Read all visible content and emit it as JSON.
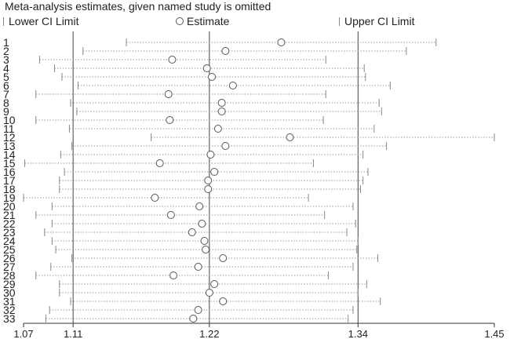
{
  "title": "Meta-analysis estimates, given named study is omitted",
  "legend": {
    "lower": "Lower CI Limit",
    "estimate": "Estimate",
    "upper": "Upper CI Limit"
  },
  "colors": {
    "ci_line": "#999999",
    "ci_cap": "#888888",
    "marker": "#555555",
    "reference_line": "#444444",
    "axis": "#333333",
    "text": "#222222"
  },
  "chart_data": {
    "type": "forest",
    "title": "Meta-analysis estimates, given named study is omitted",
    "xlim": [
      1.07,
      1.45
    ],
    "xticks": [
      1.07,
      1.11,
      1.22,
      1.34,
      1.45
    ],
    "xtick_labels": [
      "1.07",
      "1.11",
      "1.22",
      "1.34",
      "1.45"
    ],
    "reference_lines": [
      1.11,
      1.22,
      1.34
    ],
    "studies": [
      {
        "label": "1",
        "lower": 1.153,
        "estimate": 1.278,
        "upper": 1.403
      },
      {
        "label": "2",
        "lower": 1.118,
        "estimate": 1.233,
        "upper": 1.379
      },
      {
        "label": "3",
        "lower": 1.083,
        "estimate": 1.19,
        "upper": 1.314
      },
      {
        "label": "4",
        "lower": 1.095,
        "estimate": 1.218,
        "upper": 1.345
      },
      {
        "label": "5",
        "lower": 1.101,
        "estimate": 1.222,
        "upper": 1.346
      },
      {
        "label": "6",
        "lower": 1.114,
        "estimate": 1.239,
        "upper": 1.366
      },
      {
        "label": "7",
        "lower": 1.08,
        "estimate": 1.187,
        "upper": 1.314
      },
      {
        "label": "8",
        "lower": 1.108,
        "estimate": 1.23,
        "upper": 1.357
      },
      {
        "label": "9",
        "lower": 1.113,
        "estimate": 1.23,
        "upper": 1.359
      },
      {
        "label": "10",
        "lower": 1.08,
        "estimate": 1.188,
        "upper": 1.312
      },
      {
        "label": "11",
        "lower": 1.107,
        "estimate": 1.227,
        "upper": 1.353
      },
      {
        "label": "12",
        "lower": 1.173,
        "estimate": 1.285,
        "upper": 1.45
      },
      {
        "label": "13",
        "lower": 1.109,
        "estimate": 1.233,
        "upper": 1.363
      },
      {
        "label": "14",
        "lower": 1.1,
        "estimate": 1.221,
        "upper": 1.344
      },
      {
        "label": "15",
        "lower": 1.071,
        "estimate": 1.18,
        "upper": 1.304
      },
      {
        "label": "16",
        "lower": 1.103,
        "estimate": 1.224,
        "upper": 1.348
      },
      {
        "label": "17",
        "lower": 1.099,
        "estimate": 1.219,
        "upper": 1.344
      },
      {
        "label": "18",
        "lower": 1.099,
        "estimate": 1.219,
        "upper": 1.342
      },
      {
        "label": "19",
        "lower": 1.07,
        "estimate": 1.176,
        "upper": 1.3
      },
      {
        "label": "20",
        "lower": 1.093,
        "estimate": 1.212,
        "upper": 1.336
      },
      {
        "label": "21",
        "lower": 1.08,
        "estimate": 1.189,
        "upper": 1.313
      },
      {
        "label": "22",
        "lower": 1.093,
        "estimate": 1.214,
        "upper": 1.338
      },
      {
        "label": "23",
        "lower": 1.087,
        "estimate": 1.206,
        "upper": 1.331
      },
      {
        "label": "24",
        "lower": 1.093,
        "estimate": 1.216,
        "upper": 1.34
      },
      {
        "label": "25",
        "lower": 1.096,
        "estimate": 1.217,
        "upper": 1.339
      },
      {
        "label": "26",
        "lower": 1.109,
        "estimate": 1.231,
        "upper": 1.356
      },
      {
        "label": "27",
        "lower": 1.092,
        "estimate": 1.211,
        "upper": 1.336
      },
      {
        "label": "28",
        "lower": 1.08,
        "estimate": 1.191,
        "upper": 1.316
      },
      {
        "label": "29",
        "lower": 1.099,
        "estimate": 1.224,
        "upper": 1.347
      },
      {
        "label": "30",
        "lower": 1.099,
        "estimate": 1.22,
        "upper": 1.34
      },
      {
        "label": "31",
        "lower": 1.108,
        "estimate": 1.231,
        "upper": 1.358
      },
      {
        "label": "32",
        "lower": 1.091,
        "estimate": 1.211,
        "upper": 1.336
      },
      {
        "label": "33",
        "lower": 1.088,
        "estimate": 1.207,
        "upper": 1.332
      }
    ]
  }
}
